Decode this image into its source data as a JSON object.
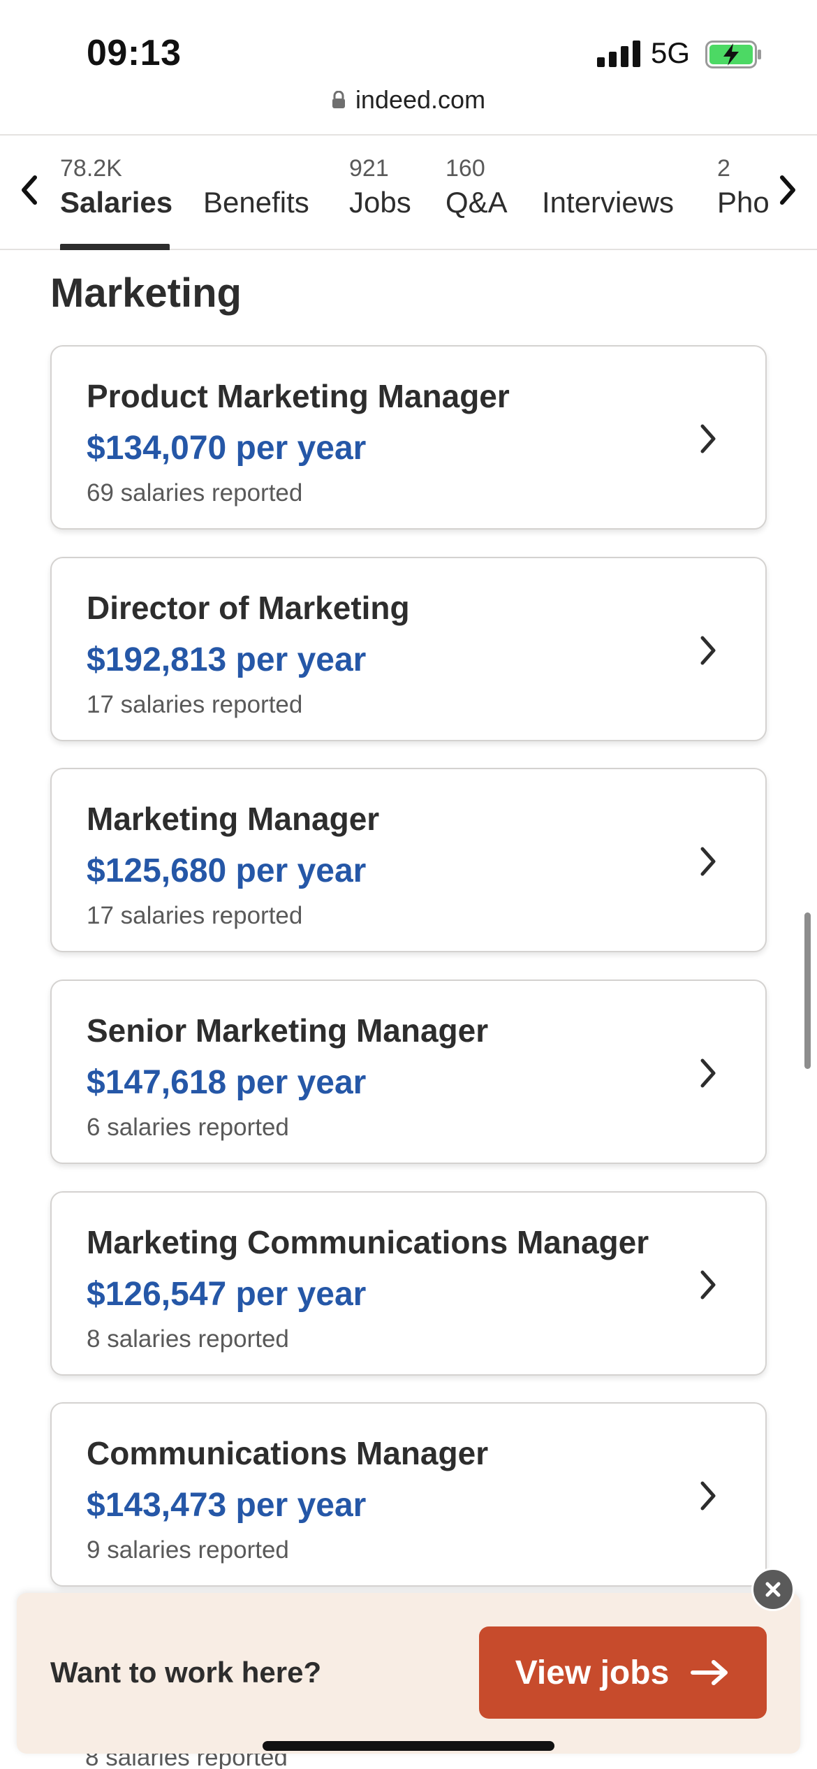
{
  "status_bar": {
    "time": "09:13",
    "network": "5G",
    "icons": [
      "signal-icon",
      "battery-charging-icon"
    ]
  },
  "browser": {
    "url": "indeed.com",
    "icons": [
      "lock-icon"
    ]
  },
  "tabs": [
    {
      "count": "78.2K",
      "label": "Salaries",
      "active": true
    },
    {
      "count": "",
      "label": "Benefits",
      "active": false
    },
    {
      "count": "921",
      "label": "Jobs",
      "active": false
    },
    {
      "count": "160",
      "label": "Q&A",
      "active": false
    },
    {
      "count": "",
      "label": "Interviews",
      "active": false
    },
    {
      "count": "2",
      "label": "Pho",
      "active": false
    }
  ],
  "section": {
    "title": "Marketing"
  },
  "jobs": [
    {
      "title": "Product Marketing Manager",
      "salary": "$134,070 per year",
      "reported": "69 salaries reported"
    },
    {
      "title": "Director of Marketing",
      "salary": "$192,813 per year",
      "reported": "17 salaries reported"
    },
    {
      "title": "Marketing Manager",
      "salary": "$125,680 per year",
      "reported": "17 salaries reported"
    },
    {
      "title": "Senior Marketing Manager",
      "salary": "$147,618 per year",
      "reported": "6 salaries reported"
    },
    {
      "title": "Marketing Communications Manager",
      "salary": "$126,547 per year",
      "reported": "8 salaries reported"
    },
    {
      "title": "Communications Manager",
      "salary": "$143,473 per year",
      "reported": "9 salaries reported"
    }
  ],
  "peek_text": "8 salaries reported",
  "banner": {
    "text": "Want to work here?",
    "button_label": "View jobs"
  },
  "colors": {
    "salary_blue": "#2557a7",
    "cta_orange": "#c74b2c",
    "banner_bg": "#f8ede4",
    "battery_green": "#4cd964"
  }
}
